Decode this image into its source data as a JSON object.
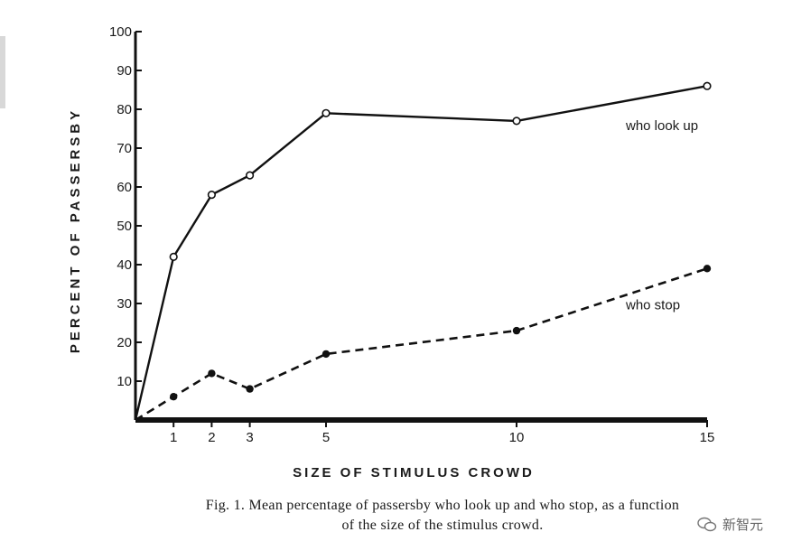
{
  "chart_data": {
    "type": "line",
    "xlabel": "SIZE OF STIMULUS CROWD",
    "ylabel": "PERCENT OF PASSERSBY",
    "xlim": [
      0,
      15
    ],
    "ylim": [
      0,
      100
    ],
    "xticks": [
      1,
      2,
      3,
      5,
      10,
      15
    ],
    "yticks": [
      10,
      20,
      30,
      40,
      50,
      60,
      70,
      80,
      90,
      100
    ],
    "grid": false,
    "series": [
      {
        "name": "who look up",
        "style": "solid",
        "marker": "open-circle",
        "x": [
          0,
          1,
          2,
          3,
          5,
          10,
          15
        ],
        "y": [
          0,
          42,
          58,
          63,
          79,
          77,
          86
        ]
      },
      {
        "name": "who stop",
        "style": "dashed",
        "marker": "filled-circle",
        "x": [
          0,
          1,
          2,
          3,
          5,
          10,
          15
        ],
        "y": [
          0,
          6,
          12,
          8,
          17,
          23,
          39
        ]
      }
    ]
  },
  "caption": {
    "line1": "Fig. 1. Mean percentage of passersby who look up and who stop, as a function",
    "line2": "of the size of the stimulus crowd."
  },
  "watermark": {
    "text": "新智元"
  }
}
